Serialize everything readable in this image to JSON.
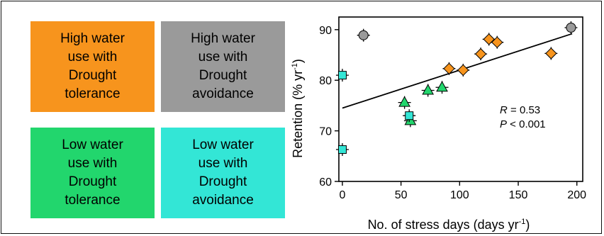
{
  "legend": [
    {
      "lines": [
        "High water",
        "use with",
        "Drought",
        "tolerance"
      ],
      "color": "#f7941d"
    },
    {
      "lines": [
        "High water",
        "use with",
        "Drought",
        "avoidance"
      ],
      "color": "#9a9a9a"
    },
    {
      "lines": [
        "Low water",
        "use with",
        "Drought",
        "tolerance"
      ],
      "color": "#22d66d"
    },
    {
      "lines": [
        "Low water",
        "use with",
        "Drought",
        "avoidance"
      ],
      "color": "#33e6d6"
    }
  ],
  "chart_data": {
    "type": "scatter",
    "xlabel": "No. of stress days (days yr",
    "xlabel_sup": "-1",
    "xlabel_tail": ")",
    "ylabel": "Retention (% yr",
    "ylabel_sup": "-1",
    "ylabel_tail": ")",
    "xlim": [
      -3,
      205
    ],
    "ylim": [
      60,
      92.5
    ],
    "xticks": [
      0,
      50,
      100,
      150,
      200
    ],
    "yticks": [
      60,
      70,
      80,
      90
    ],
    "grid": false,
    "annotation": {
      "r_label": "R",
      "r_value": " = 0.53",
      "p_label": "P",
      "p_value": " < 0.001"
    },
    "regression": {
      "x": [
        0,
        196
      ],
      "y": [
        74.5,
        89.2
      ]
    },
    "series": [
      {
        "group": "high-water-tolerance",
        "marker": "diamond",
        "color": "#f7941d",
        "points": [
          [
            91,
            82.3
          ],
          [
            103,
            82.0
          ],
          [
            118,
            85.2
          ],
          [
            125,
            88.1
          ],
          [
            132,
            87.5
          ],
          [
            178,
            85.3
          ]
        ]
      },
      {
        "group": "high-water-avoidance",
        "marker": "circle",
        "color": "#9a9a9a",
        "points": [
          [
            18,
            88.9
          ],
          [
            195,
            90.4
          ]
        ]
      },
      {
        "group": "low-water-tolerance",
        "marker": "triangle",
        "color": "#22d66d",
        "points": [
          [
            53,
            75.6
          ],
          [
            58,
            72.0
          ],
          [
            73,
            78.0
          ],
          [
            85,
            78.6
          ]
        ]
      },
      {
        "group": "low-water-avoidance",
        "marker": "square",
        "color": "#33e6d6",
        "points": [
          [
            0,
            81.0
          ],
          [
            0,
            66.3
          ],
          [
            57,
            73.0
          ]
        ]
      }
    ]
  }
}
